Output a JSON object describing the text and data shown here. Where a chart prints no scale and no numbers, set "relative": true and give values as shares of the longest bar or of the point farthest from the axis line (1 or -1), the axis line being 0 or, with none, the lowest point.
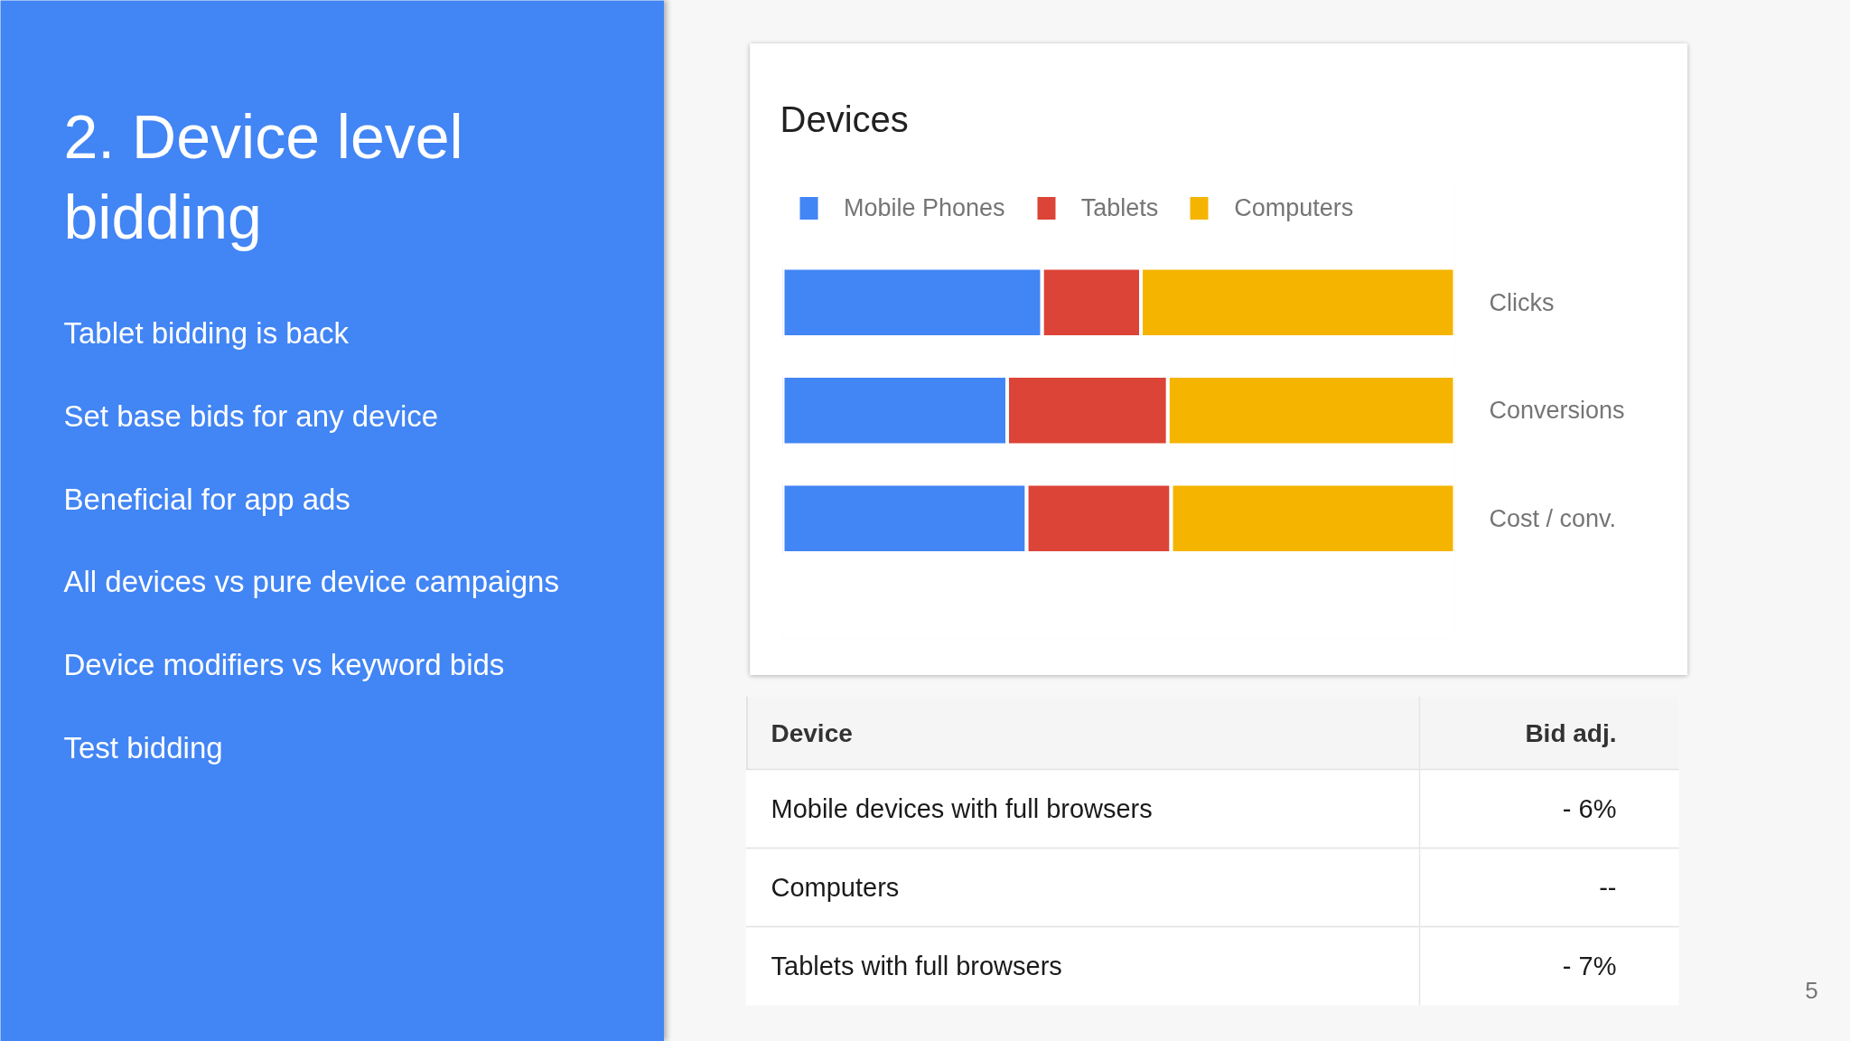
{
  "chart_data": [
    {
      "type": "other",
      "title": "2. Device level bidding",
      "annotations": [
        "Tablet bidding is back",
        "Set base bids for any device",
        "Beneficial for app ads",
        "All devices vs pure device campaigns",
        "Device modifiers vs keyword bids",
        "Test bidding"
      ]
    },
    {
      "type": "bar",
      "title": "Devices",
      "orientation": "horizontal",
      "stacked": true,
      "relative": true,
      "legend": "top left",
      "categories": [
        "Clicks",
        "Conversions",
        "Cost / conv."
      ],
      "series": [
        {
          "name": "Mobile Phones",
          "color": "#4285f4",
          "values": [
            0.386,
            0.334,
            0.363
          ]
        },
        {
          "name": "Tablets",
          "color": "#db4437",
          "values": [
            0.147,
            0.239,
            0.215
          ]
        },
        {
          "name": "Computers",
          "color": "#f4b400",
          "values": [
            0.467,
            0.427,
            0.422
          ]
        }
      ]
    },
    {
      "type": "other",
      "annotations": [
        "Device",
        "Bid adj.",
        "Mobile devices with full browsers",
        "- 6%",
        "Computers",
        "--",
        "Tablets with full browsers",
        "- 7%",
        "5"
      ]
    }
  ]
}
